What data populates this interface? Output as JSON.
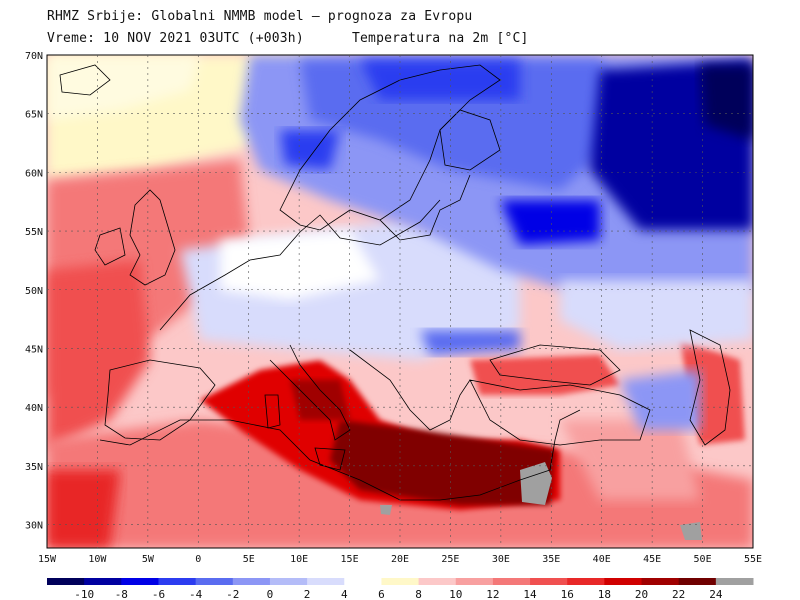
{
  "header": {
    "line1": "RHMZ Srbije: Globalni NMMB model — prognoza za Evropu",
    "line2": "Vreme: 10 NOV 2021 03UTC (+003h)",
    "line3": "Temperatura na 2m [°C]"
  },
  "map": {
    "lon_range": [
      -15,
      55
    ],
    "lat_range": [
      28,
      70
    ],
    "lat_ticks": [
      "70N",
      "65N",
      "60N",
      "55N",
      "50N",
      "45N",
      "40N",
      "35N",
      "30N"
    ],
    "lat_values": [
      70,
      65,
      60,
      55,
      50,
      45,
      40,
      35,
      30
    ],
    "lon_ticks": [
      "15W",
      "10W",
      "5W",
      "0",
      "5E",
      "10E",
      "15E",
      "20E",
      "25E",
      "30E",
      "35E",
      "40E",
      "45E",
      "50E",
      "55E"
    ],
    "lon_values": [
      -15,
      -10,
      -5,
      0,
      5,
      10,
      15,
      20,
      25,
      30,
      35,
      40,
      45,
      50,
      55
    ],
    "colors": {
      "ocean_north": "#fcf8d4",
      "ocean_warm": "#f05050",
      "mediterranean": "#e00000",
      "levant_sea": "#800000",
      "cold_land": "#5a6cf0",
      "very_cold": "#0000c0",
      "land_line": "#000000"
    }
  },
  "colorbar": {
    "labels": [
      "-10",
      "-8",
      "-6",
      "-4",
      "-2",
      "0",
      "2",
      "4",
      "6",
      "8",
      "10",
      "12",
      "14",
      "16",
      "18",
      "20",
      "22",
      "24"
    ],
    "colors": [
      "#00005a",
      "#0000a0",
      "#0000e6",
      "#2c3cf0",
      "#5a6cf0",
      "#8c96f5",
      "#b4bcf8",
      "#d8dcfc",
      "#ffffff",
      "#fff8c8",
      "#fcc8c8",
      "#f8a0a0",
      "#f47878",
      "#f05050",
      "#e82828",
      "#d00000",
      "#a00000",
      "#700000",
      "#a0a0a0"
    ]
  }
}
